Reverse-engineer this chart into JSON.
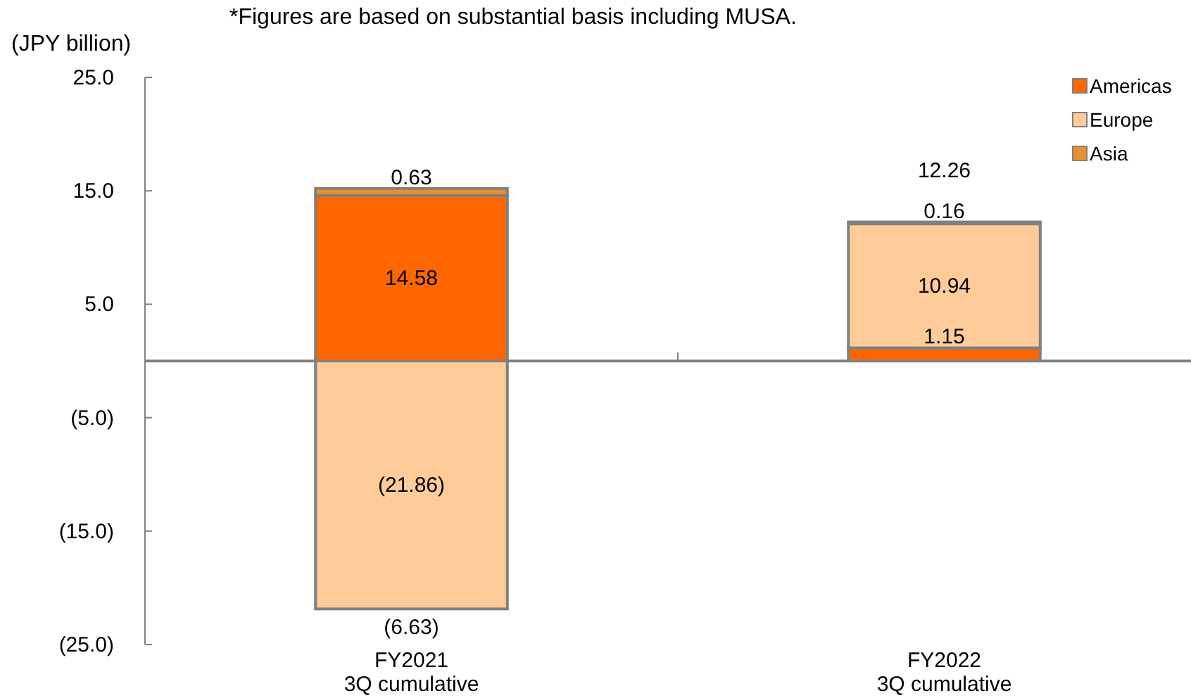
{
  "chart_data": {
    "type": "bar",
    "stacked": true,
    "ylabel": "(JPY billion)",
    "annotations": [
      "*Figures are based on substantial basis including MUSA."
    ],
    "categories": [
      "FY2021\n3Q cumulative",
      "FY2022\n3Q cumulative"
    ],
    "series": [
      {
        "name": "Americas",
        "color": "#ff6600",
        "values": [
          14.58,
          1.15
        ],
        "value_labels": [
          "14.58",
          "1.15"
        ]
      },
      {
        "name": "Europe",
        "color": "#ffcc99",
        "values": [
          -21.86,
          10.94
        ],
        "value_labels": [
          "(21.86)",
          "10.94"
        ]
      },
      {
        "name": "Asia",
        "color": "#e8902e",
        "values": [
          0.63,
          0.16
        ],
        "value_labels": [
          "0.63",
          "0.16"
        ]
      }
    ],
    "totals": [
      "(6.63)",
      "12.26"
    ],
    "ylim": [
      -25,
      25
    ],
    "yticks": [
      {
        "value": 25,
        "label": "25.0"
      },
      {
        "value": 15,
        "label": "15.0"
      },
      {
        "value": 5,
        "label": "5.0"
      },
      {
        "value": -5,
        "label": "(5.0)"
      },
      {
        "value": -15,
        "label": "(15.0)"
      },
      {
        "value": -25,
        "label": "(25.0)"
      }
    ],
    "legend": "top right"
  }
}
